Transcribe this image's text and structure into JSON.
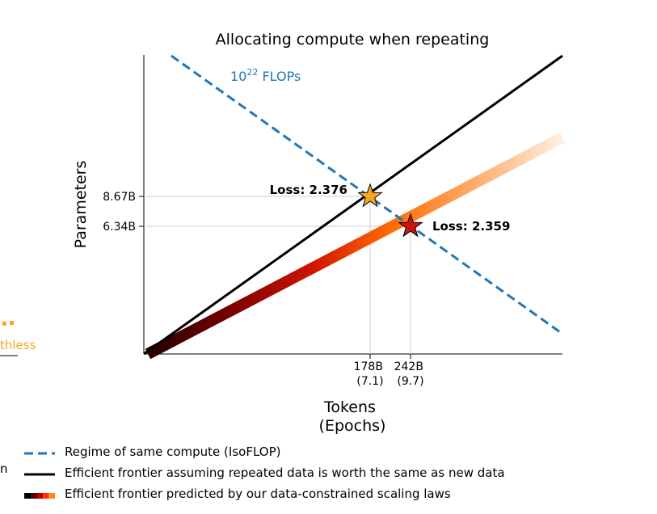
{
  "chart_data": {
    "type": "line",
    "title": "Allocating compute when repeating",
    "xlabel": "Tokens\n(Epochs)",
    "ylabel": "Parameters",
    "x_ticks": [
      {
        "label": "178B\n(7.1)",
        "tokens_billions": 178,
        "epochs": 7.1
      },
      {
        "label": "242B\n(9.7)",
        "tokens_billions": 242,
        "epochs": 9.7
      }
    ],
    "y_ticks": [
      {
        "label": "8.67B",
        "params_billions": 8.67
      },
      {
        "label": "6.34B",
        "params_billions": 6.34
      }
    ],
    "log_scale": true,
    "annotation_flops": "10",
    "annotation_flops_sup": "22",
    "annotation_flops_unit": "FLOPs",
    "points": [
      {
        "label": "Loss: 2.376",
        "tokens_billions": 178,
        "params_billions": 8.67,
        "color": "#f5a623"
      },
      {
        "label": "Loss: 2.359",
        "tokens_billions": 242,
        "params_billions": 6.34,
        "color": "#cc1111"
      }
    ],
    "series": [
      {
        "name": "Regime of same compute (IsoFLOP)",
        "color": "#1f77b4",
        "style": "dashed"
      },
      {
        "name": "Efficient frontier assuming repeated data is worth the same as new data",
        "color": "#000000",
        "style": "solid"
      },
      {
        "name": "Efficient frontier predicted by our data-constrained scaling laws",
        "color": "gradient",
        "style": "solid"
      }
    ]
  },
  "edge_fragments": {
    "left_dot_text": ".",
    "left_word": "thless",
    "left_legend_char": "n"
  },
  "colors": {
    "isoflop": "#1f77b4",
    "frontier": "#000000",
    "grid": "#cccccc",
    "star_orange": "#f5a623",
    "star_red": "#cc1111",
    "fragment_orange": "#f5a623"
  }
}
